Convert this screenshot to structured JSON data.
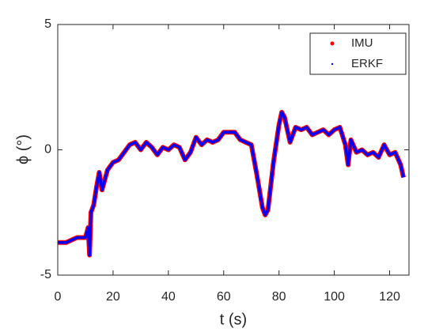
{
  "chart_data": {
    "type": "line",
    "xlabel": "t (s)",
    "ylabel": "ϕ (°)",
    "x": [
      0,
      3,
      5,
      7,
      10,
      11,
      11.5,
      12,
      13,
      14,
      15,
      16,
      17,
      18,
      20,
      22,
      24,
      26,
      28,
      30,
      32,
      34,
      36,
      38,
      40,
      42,
      44,
      46,
      48,
      50,
      52,
      54,
      56,
      58,
      60,
      62,
      64,
      66,
      68,
      70,
      72,
      74,
      75,
      76,
      78,
      80,
      81,
      82,
      84,
      86,
      88,
      90,
      92,
      94,
      96,
      98,
      100,
      102,
      104,
      105,
      106,
      108,
      110,
      112,
      114,
      116,
      118,
      120,
      122,
      124,
      125
    ],
    "series": [
      {
        "name": "IMU",
        "color": "#ff0000",
        "values": [
          -3.7,
          -3.7,
          -3.6,
          -3.5,
          -3.5,
          -3.1,
          -4.2,
          -2.5,
          -2.2,
          -1.5,
          -0.9,
          -1.6,
          -1.2,
          -0.8,
          -0.5,
          -0.4,
          -0.1,
          0.2,
          0.3,
          0,
          0.3,
          0.1,
          -0.2,
          0.1,
          0,
          0.2,
          0.1,
          -0.4,
          -0.1,
          0.5,
          0.2,
          0.4,
          0.3,
          0.4,
          0.7,
          0.7,
          0.7,
          0.4,
          0.3,
          0.2,
          -1,
          -2.3,
          -2.6,
          -2.4,
          -0.5,
          1,
          1.5,
          1.3,
          0.3,
          0.9,
          0.8,
          0.9,
          0.6,
          0.7,
          0.8,
          0.6,
          0.8,
          0.9,
          0.2,
          -0.6,
          0.4,
          -0.1,
          0,
          -0.2,
          -0.1,
          -0.3,
          0.2,
          -0.2,
          -0.1,
          -0.6,
          -1.1
        ]
      },
      {
        "name": "ERKF",
        "color": "#0000ff",
        "values": [
          -3.7,
          -3.7,
          -3.6,
          -3.5,
          -3.5,
          -3.1,
          -4.2,
          -2.5,
          -2.2,
          -1.5,
          -0.9,
          -1.6,
          -1.2,
          -0.8,
          -0.5,
          -0.4,
          -0.1,
          0.2,
          0.3,
          0,
          0.3,
          0.1,
          -0.2,
          0.1,
          0,
          0.2,
          0.1,
          -0.4,
          -0.1,
          0.5,
          0.2,
          0.4,
          0.3,
          0.4,
          0.7,
          0.7,
          0.7,
          0.4,
          0.3,
          0.2,
          -1,
          -2.3,
          -2.6,
          -2.4,
          -0.5,
          1,
          1.5,
          1.3,
          0.3,
          0.9,
          0.8,
          0.9,
          0.6,
          0.7,
          0.8,
          0.6,
          0.8,
          0.9,
          0.2,
          -0.6,
          0.4,
          -0.1,
          0,
          -0.2,
          -0.1,
          -0.3,
          0.2,
          -0.2,
          -0.1,
          -0.6,
          -1.1
        ]
      }
    ],
    "xlim": [
      0,
      127
    ],
    "ylim": [
      -5,
      5
    ],
    "xticks": [
      0,
      20,
      40,
      60,
      80,
      100,
      120
    ],
    "yticks": [
      -5,
      0,
      5
    ],
    "legend": "upper right"
  }
}
